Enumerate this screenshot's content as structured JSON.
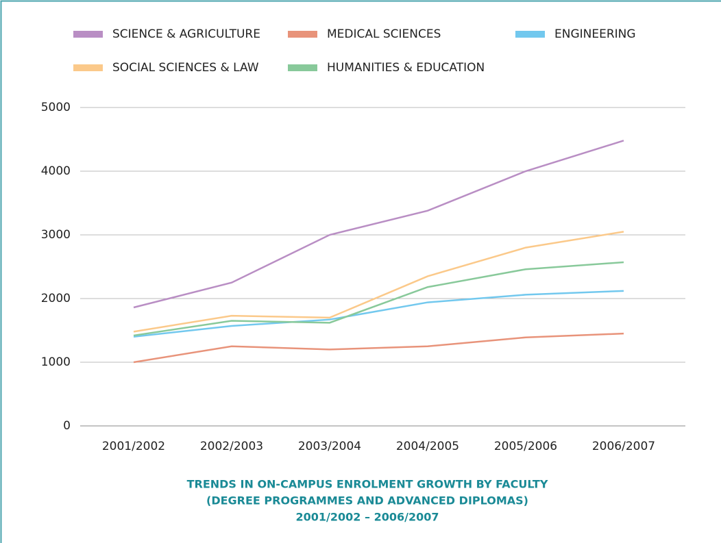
{
  "chart_data": {
    "type": "line",
    "title": [
      "TRENDS IN ON-CAMPUS ENROLMENT GROWTH BY FACULTY",
      "(DEGREE PROGRAMMES AND ADVANCED DIPLOMAS)",
      "2001/2002 – 2006/2007"
    ],
    "categories": [
      "2001/2002",
      "2002/2003",
      "2003/2004",
      "2004/2005",
      "2005/2006",
      "2006/2007"
    ],
    "series": [
      {
        "name": "SCIENCE & AGRICULTURE",
        "color": "#b98ec4",
        "values": [
          1860,
          2250,
          3000,
          3380,
          4000,
          4480
        ]
      },
      {
        "name": "MEDICAL SCIENCES",
        "color": "#e8937a",
        "values": [
          1000,
          1250,
          1200,
          1250,
          1390,
          1450
        ]
      },
      {
        "name": "ENGINEERING",
        "color": "#72c8ee",
        "values": [
          1400,
          1570,
          1670,
          1940,
          2060,
          2120
        ]
      },
      {
        "name": "SOCIAL SCIENCES & LAW",
        "color": "#fbc98a",
        "values": [
          1480,
          1730,
          1700,
          2350,
          2800,
          3050
        ]
      },
      {
        "name": "HUMANITIES & EDUCATION",
        "color": "#88c99a",
        "values": [
          1420,
          1650,
          1620,
          2180,
          2460,
          2570
        ]
      }
    ],
    "ylim": [
      0,
      5000
    ],
    "yticks": [
      0,
      1000,
      2000,
      3000,
      4000,
      5000
    ],
    "grid": true,
    "legend": "top"
  }
}
